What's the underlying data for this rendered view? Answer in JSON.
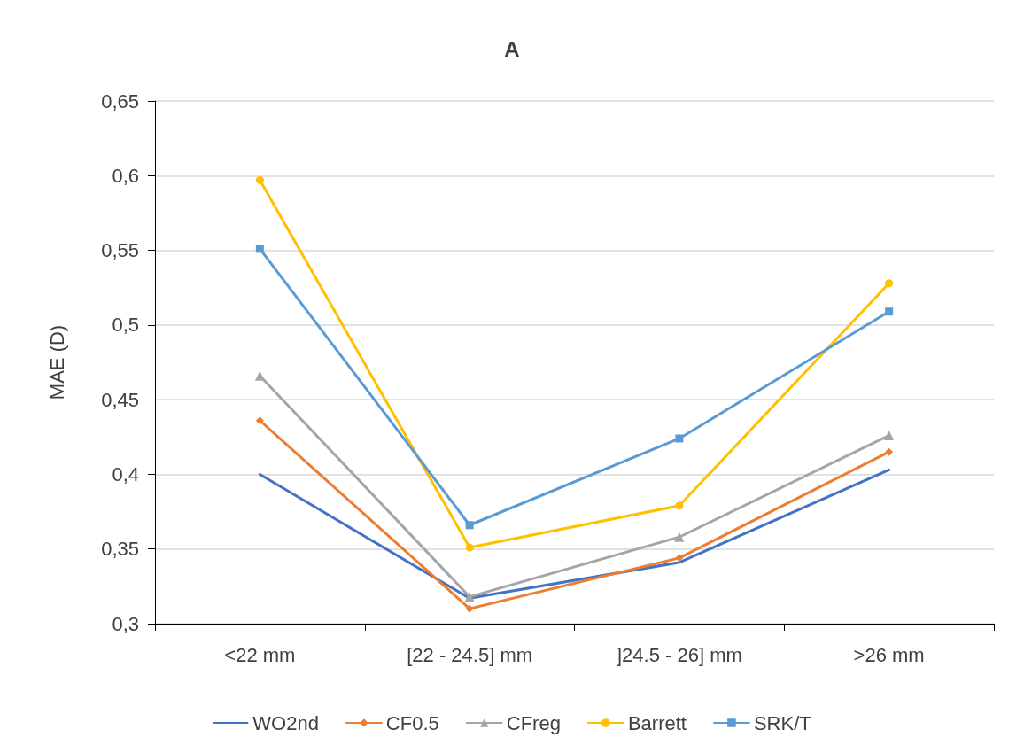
{
  "chart_data": {
    "type": "line",
    "title": "A",
    "ylabel": "MAE (D)",
    "categories": [
      "<22 mm",
      "[22 - 24.5] mm",
      "]24.5 - 26] mm",
      ">26 mm"
    ],
    "series": [
      {
        "name": "WO2nd",
        "color": "#4472c4",
        "marker": "none",
        "values": [
          0.4,
          0.317,
          0.341,
          0.403
        ]
      },
      {
        "name": "CF0.5",
        "color": "#ed7d31",
        "marker": "diamond",
        "values": [
          0.436,
          0.31,
          0.344,
          0.415
        ]
      },
      {
        "name": "CFreg",
        "color": "#a5a5a5",
        "marker": "triangle",
        "values": [
          0.466,
          0.318,
          0.358,
          0.426
        ]
      },
      {
        "name": "Barrett",
        "color": "#ffc000",
        "marker": "circle",
        "values": [
          0.597,
          0.351,
          0.379,
          0.528
        ]
      },
      {
        "name": "SRK/T",
        "color": "#5b9bd5",
        "marker": "square",
        "values": [
          0.551,
          0.366,
          0.424,
          0.509
        ]
      }
    ],
    "ylim": [
      0.3,
      0.65
    ],
    "yticks": [
      {
        "value": 0.3,
        "label": "0,3"
      },
      {
        "value": 0.35,
        "label": "0,35"
      },
      {
        "value": 0.4,
        "label": "0,4"
      },
      {
        "value": 0.45,
        "label": "0,45"
      },
      {
        "value": 0.5,
        "label": "0,5"
      },
      {
        "value": 0.55,
        "label": "0,55"
      },
      {
        "value": 0.6,
        "label": "0,6"
      },
      {
        "value": 0.65,
        "label": "0,65"
      }
    ],
    "grid": "y",
    "legend": "bottom",
    "line_style": "solid"
  }
}
